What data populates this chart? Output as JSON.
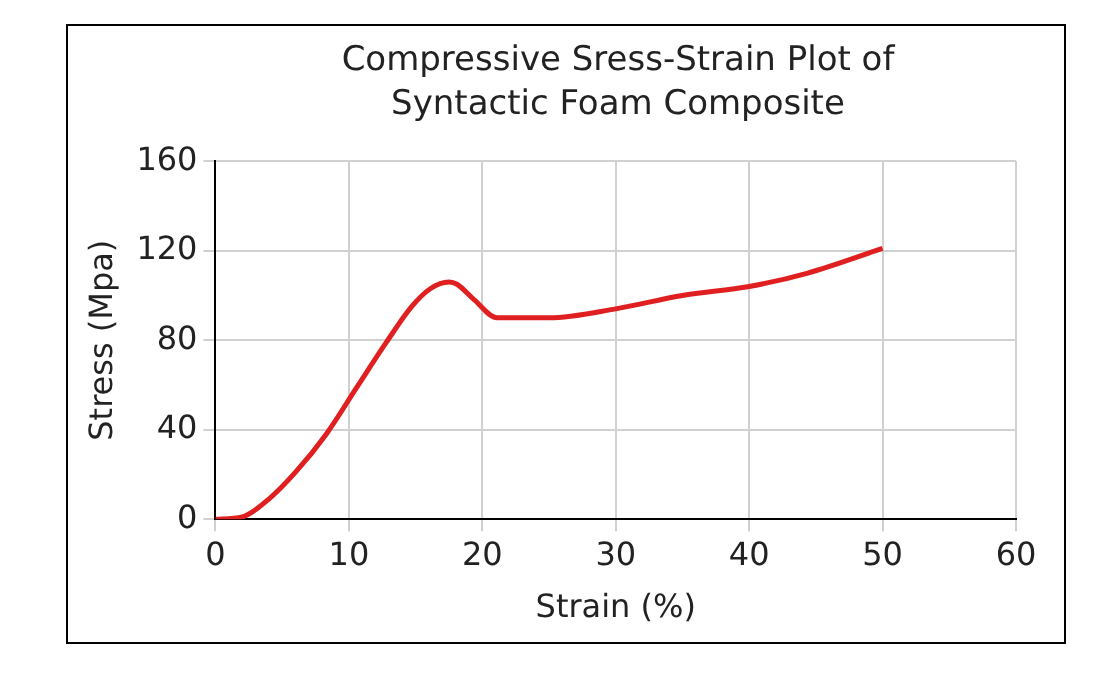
{
  "chart_data": {
    "type": "line",
    "title": "Compressive Sress-Strain Plot of Syntactic Foam Composite",
    "xlabel": "Strain (%)",
    "ylabel": "Stress (Mpa)",
    "x": [
      0,
      2,
      4,
      6,
      8.3,
      10.6,
      12.8,
      14.7,
      16.1,
      17.5,
      18.1,
      19.4,
      21.1,
      25,
      30,
      35,
      40,
      44.4,
      50
    ],
    "series": [
      {
        "color": "#e02020",
        "values": [
          0,
          1,
          9,
          21,
          38,
          59,
          79,
          95,
          103,
          106,
          105,
          98,
          90,
          90,
          94,
          100,
          104,
          110,
          121
        ]
      }
    ],
    "xlim": [
      0,
      60
    ],
    "xticks": [
      0,
      10,
      20,
      30,
      40,
      50,
      60
    ],
    "ylim": [
      0,
      160
    ],
    "yticks": [
      0,
      40,
      80,
      120,
      160
    ],
    "grid": true,
    "legend": false,
    "marker": "none",
    "line_style": "solid"
  }
}
